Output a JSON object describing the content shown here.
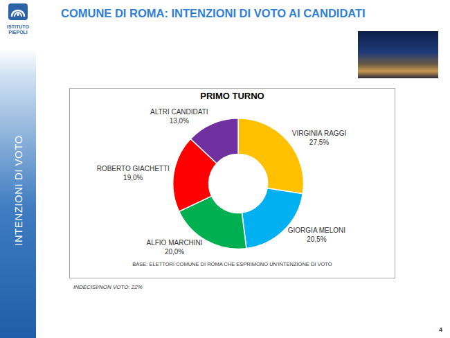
{
  "page": {
    "title": "COMUNE DI ROMA: INTENZIONI DI VOTO AI CANDIDATI",
    "logo": [
      "ISTITUTO",
      "PIEPOLI"
    ],
    "side_label": "INTENZIONI DI VOTO",
    "note": "INDECISI/NON VOTO: 22%",
    "page_number": "4"
  },
  "chart_data": {
    "type": "donut",
    "title": "PRIMO TURNO",
    "categories": [
      "VIRGINIA RAGGI",
      "GIORGIA MELONI",
      "ALFIO MARCHINI",
      "ROBERTO GIACHETTI",
      "ALTRI CANDIDATI"
    ],
    "values": [
      27.5,
      20.5,
      20.0,
      19.0,
      13.0
    ],
    "value_labels": [
      "27,5%",
      "20,5%",
      "20,0%",
      "19,0%",
      "13,0%"
    ],
    "colors": [
      "#ffc000",
      "#00b0f0",
      "#00b050",
      "#ff0000",
      "#7030a0"
    ],
    "data_labels": true,
    "annotations": [
      "BASE: ELETTORI COMUNE DI ROMA CHE ESPRIMONO UN'INTENZIONE DI VOTO"
    ]
  }
}
